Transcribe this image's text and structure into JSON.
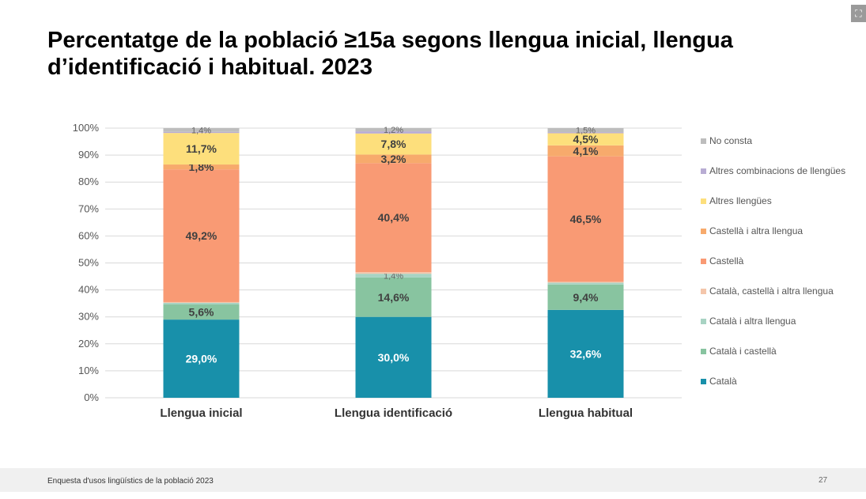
{
  "title": "Percentatge de la població ≥15a segons llengua inicial, llengua d’identificació i habitual. 2023",
  "expand_icon": "expand-icon",
  "footer": {
    "source": "Enquesta d'usos lingüístics de la població 2023",
    "page": "27"
  },
  "chart_data": {
    "type": "bar",
    "stacked": true,
    "title": "",
    "xlabel": "",
    "ylabel": "",
    "ylim": [
      0,
      100
    ],
    "yticks": [
      "0%",
      "10%",
      "20%",
      "30%",
      "40%",
      "50%",
      "60%",
      "70%",
      "80%",
      "90%",
      "100%"
    ],
    "grid": true,
    "legend_position": "right",
    "categories": [
      "Llengua inicial",
      "Llengua identificació",
      "Llengua habitual"
    ],
    "series": [
      {
        "name": "Català",
        "color": "#1890aa",
        "values": [
          29.0,
          30.0,
          32.6
        ],
        "labels": [
          "29,0%",
          "30,0%",
          "32,6%"
        ]
      },
      {
        "name": "Català i castellà",
        "color": "#88c4a0",
        "values": [
          5.6,
          14.6,
          9.4
        ],
        "labels": [
          "5,6%",
          "14,6%",
          "9,4%"
        ]
      },
      {
        "name": "Català i altra llengua",
        "color": "#a8d3c3",
        "values": [
          0.6,
          1.4,
          0.7
        ],
        "labels": [
          "",
          "1,4%",
          ""
        ]
      },
      {
        "name": "Català, castellà i altra llengua",
        "color": "#f4c6ab",
        "values": [
          0.3,
          0.6,
          0.3
        ],
        "labels": [
          "",
          "",
          ""
        ]
      },
      {
        "name": "Castellà",
        "color": "#f99a74",
        "values": [
          49.2,
          40.4,
          46.5
        ],
        "labels": [
          "49,2%",
          "40,4%",
          "46,5%"
        ]
      },
      {
        "name": "Castellà i altra llengua",
        "color": "#f7aa6c",
        "values": [
          1.8,
          3.2,
          4.1
        ],
        "labels": [
          "1,8%",
          "3,2%",
          "4,1%"
        ]
      },
      {
        "name": "Altres llengües",
        "color": "#fddf7c",
        "values": [
          11.7,
          7.8,
          4.5
        ],
        "labels": [
          "11,7%",
          "7,8%",
          "4,5%"
        ]
      },
      {
        "name": "Altres combinacions de llengües",
        "color": "#b8acd3",
        "values": [
          0.4,
          0.8,
          0.4
        ],
        "labels": [
          "",
          "",
          ""
        ]
      },
      {
        "name": "No consta",
        "color": "#bdbdbd",
        "values": [
          1.4,
          1.2,
          1.5
        ],
        "labels": [
          "1,4%",
          "1,2%",
          "1,5%"
        ]
      }
    ]
  }
}
